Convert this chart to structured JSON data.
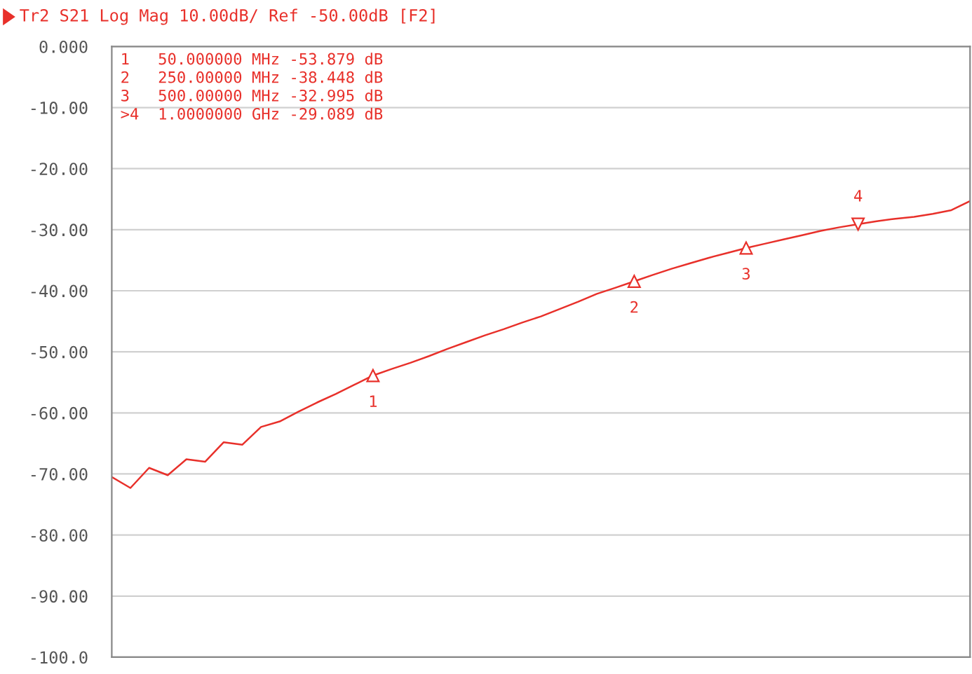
{
  "chart_data": {
    "type": "line",
    "title": "Tr2 S21 Log Mag 10.00dB/ Ref -50.00dB [F2]",
    "categories": [
      null,
      null,
      null,
      null,
      null,
      null,
      null,
      null,
      null,
      null,
      null,
      null,
      null,
      null,
      null,
      null,
      null,
      null,
      null,
      null,
      null,
      null,
      null,
      null,
      null,
      null,
      null,
      null,
      null,
      null,
      null,
      null,
      null,
      null,
      null,
      null,
      null,
      null,
      null,
      null,
      null,
      null,
      null,
      null,
      null,
      null,
      null
    ],
    "series": [
      {
        "color": "#e8302a",
        "values": [
          -70.5,
          -72.3,
          -69.0,
          -70.2,
          -67.6,
          -68.0,
          -64.8,
          -65.2,
          -62.3,
          -61.4,
          -59.8,
          -58.3,
          -56.9,
          -55.4,
          -53.879,
          -52.8,
          -51.8,
          -50.7,
          -49.5,
          -48.4,
          -47.3,
          -46.3,
          -45.2,
          -44.2,
          -43.0,
          -41.8,
          -40.5,
          -39.5,
          -38.448,
          -37.4,
          -36.4,
          -35.5,
          -34.6,
          -33.8,
          -32.995,
          -32.3,
          -31.6,
          -30.9,
          -30.2,
          -29.6,
          -29.089,
          -28.6,
          -28.2,
          -27.9,
          -27.4,
          -26.8,
          -25.3
        ]
      }
    ],
    "ylim": [
      -100,
      0
    ],
    "yticks": [
      {
        "value": 0,
        "label": "0.000"
      },
      {
        "value": -10,
        "label": "-10.00"
      },
      {
        "value": -20,
        "label": "-20.00"
      },
      {
        "value": -30,
        "label": "-30.00"
      },
      {
        "value": -40,
        "label": "-40.00"
      },
      {
        "value": -50,
        "label": "-50.00"
      },
      {
        "value": -60,
        "label": "-60.00"
      },
      {
        "value": -70,
        "label": "-70.00"
      },
      {
        "value": -80,
        "label": "-80.00"
      },
      {
        "value": -90,
        "label": "-90.00"
      },
      {
        "value": -100,
        "label": "-100.0"
      }
    ],
    "grid": "y",
    "tick_labels": "y",
    "annotations": [
      "1   50.000000 MHz -53.879 dB",
      "2   250.00000 MHz -38.448 dB",
      "3   500.00000 MHz -32.995 dB",
      ">4  1.0000000 GHz -29.089 dB",
      {
        "text": "1",
        "y": -53.879
      },
      {
        "text": "2",
        "y": -38.448
      },
      {
        "text": "3",
        "y": -32.995
      },
      {
        "text": "4",
        "y": -29.089
      }
    ]
  }
}
